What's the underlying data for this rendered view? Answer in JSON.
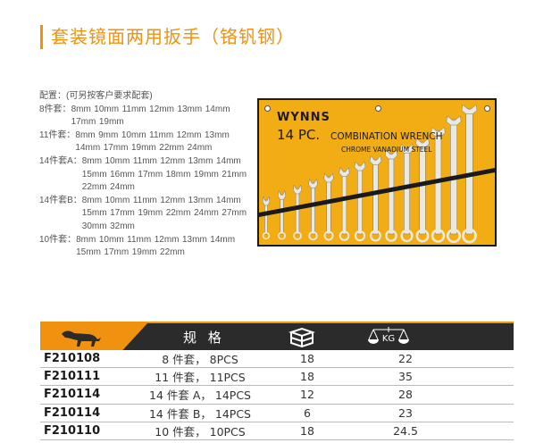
{
  "title": "套装镜面两用扳手（铬钒钢）",
  "config": {
    "heading": "配置：(可另按客户要求配套)",
    "sets": [
      {
        "label": "8件套：",
        "sizes": [
          "8mm",
          "10mm",
          "11mm",
          "12mm",
          "13mm",
          "14mm",
          "17mm",
          "19mm"
        ]
      },
      {
        "label": "11件套：",
        "sizes": [
          "8mm",
          "9mm",
          "10mm",
          "11mm",
          "12mm",
          "13mm",
          "14mm",
          "17mm",
          "19mm",
          "22mm",
          "24mm"
        ]
      },
      {
        "label": "14件套A：",
        "sizes": [
          "8mm",
          "10mm",
          "11mm",
          "12mm",
          "13mm",
          "14mm",
          "15mm",
          "16mm",
          "17mm",
          "18mm",
          "19mm",
          "21mm",
          "22mm",
          "24mm"
        ]
      },
      {
        "label": "14件套B：",
        "sizes": [
          "8mm",
          "10mm",
          "11mm",
          "12mm",
          "13mm",
          "14mm",
          "15mm",
          "17mm",
          "19mm",
          "22mm",
          "24mm",
          "27mm",
          "30mm",
          "32mm"
        ]
      },
      {
        "label": "10件套：",
        "sizes": [
          "8mm",
          "10mm",
          "11mm",
          "12mm",
          "13mm",
          "14mm",
          "15mm",
          "17mm",
          "19mm",
          "22mm"
        ]
      }
    ]
  },
  "product_image": {
    "brand": "WYNNS",
    "pc": "14 PC.",
    "name": "COMBINATION WRENCH",
    "material": "CHROME VANADIUM STEEL",
    "colors": {
      "roll": "#f2ad14"
    }
  },
  "table": {
    "header": {
      "spec": "规 格",
      "box_icon": "carton-box-icon",
      "weight_icon": "scale-kg-icon",
      "weight_unit": "KG"
    },
    "rows": [
      {
        "code": "F210108",
        "spec": "8 件套， 8PCS",
        "qty": "18",
        "weight": "22"
      },
      {
        "code": "F210111",
        "spec": "11 件套， 11PCS",
        "qty": "18",
        "weight": "35"
      },
      {
        "code": "F210114",
        "spec": "14 件套 A， 14PCS",
        "qty": "12",
        "weight": "28"
      },
      {
        "code": "F210114",
        "spec": "14 件套 B， 14PCS",
        "qty": "6",
        "weight": "23"
      },
      {
        "code": "F210110",
        "spec": "10 件套， 10PCS",
        "qty": "18",
        "weight": "24.5"
      }
    ]
  },
  "colors": {
    "accent": "#f0920f",
    "header_dark": "#2b2b2b"
  }
}
